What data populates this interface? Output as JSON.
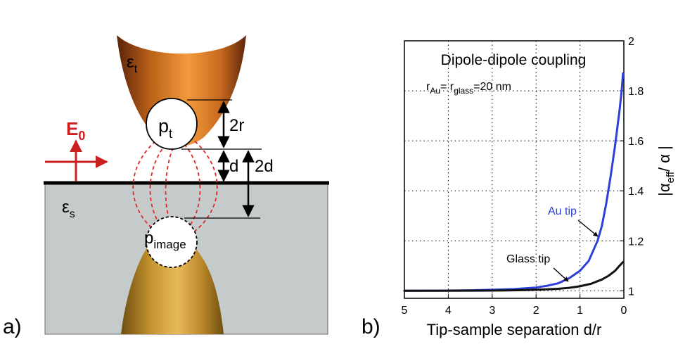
{
  "panel_a": {
    "label": "a)",
    "field_label": "E",
    "field_sub": "0",
    "eps_tip": "ε",
    "eps_tip_sub": "t",
    "eps_sample": "ε",
    "eps_sample_sub": "s",
    "dipole": "p",
    "dipole_sub": "t",
    "image_dipole": "p",
    "image_dipole_sub": "image",
    "dim_2r": "2r",
    "dim_d": "d",
    "dim_2d": "2d",
    "colors": {
      "field": "#cc1f1f",
      "substrate": "#c5cbca",
      "field_lines": "#e0282a"
    }
  },
  "panel_b": {
    "label": "b)",
    "chart_data": {
      "type": "line",
      "title": "Dipole-dipole coupling",
      "subtitle_main": "r",
      "subtitle_sub1": "Au",
      "subtitle_eq": "= r",
      "subtitle_sub2": "glass",
      "subtitle_tail": "=20 nm",
      "xlabel": "Tip-sample separation d/r",
      "ylabel_main": "|α",
      "ylabel_sub": "eff",
      "ylabel_tail": "/ α |",
      "xlim": [
        5,
        0
      ],
      "ylim": [
        0.97,
        2
      ],
      "x_reversed": true,
      "xticks": [
        "5",
        "4",
        "3",
        "2",
        "1",
        "0"
      ],
      "yticks": [
        "1",
        "1.2",
        "1.4",
        "1.6",
        "1.8",
        "2"
      ],
      "grid": true,
      "series": [
        {
          "name": "Au tip",
          "color": "#2c3fd8",
          "x": [
            5,
            4,
            3.5,
            3,
            2.5,
            2,
            1.75,
            1.5,
            1.25,
            1.0,
            0.8,
            0.6,
            0.5,
            0.4,
            0.3,
            0.2,
            0.1,
            0.05,
            0.02
          ],
          "y": [
            1.0,
            1.001,
            1.002,
            1.004,
            1.007,
            1.013,
            1.02,
            1.03,
            1.05,
            1.08,
            1.12,
            1.2,
            1.26,
            1.35,
            1.46,
            1.58,
            1.72,
            1.8,
            1.87
          ]
        },
        {
          "name": "Glass tip",
          "color": "#111111",
          "x": [
            5,
            4,
            3,
            2.5,
            2,
            1.5,
            1.25,
            1.0,
            0.75,
            0.5,
            0.35,
            0.2,
            0.1,
            0.02
          ],
          "y": [
            1.0,
            1.0,
            1.001,
            1.002,
            1.004,
            1.008,
            1.012,
            1.018,
            1.028,
            1.045,
            1.06,
            1.08,
            1.1,
            1.115
          ]
        }
      ],
      "annotations": [
        "Au tip",
        "Glass tip"
      ]
    }
  }
}
